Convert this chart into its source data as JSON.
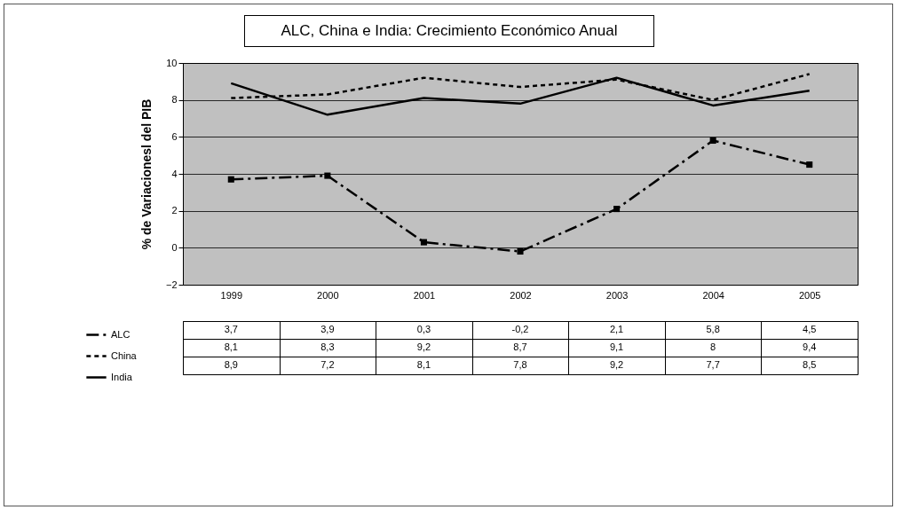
{
  "chart_data": {
    "type": "line",
    "title": "ALC, China e India: Crecimiento Económico Anual",
    "ylabel": "% de Variacionesl del PIB",
    "categories": [
      "1999",
      "2000",
      "2001",
      "2002",
      "2003",
      "2004",
      "2005"
    ],
    "series": [
      {
        "name": "ALC",
        "color": "#000000",
        "line_style": "dashed",
        "marker": "square",
        "values": [
          3.7,
          3.9,
          0.3,
          -0.2,
          2.1,
          5.8,
          4.5
        ],
        "value_labels": [
          "3,7",
          "3,9",
          "0,3",
          "-0,2",
          "2,1",
          "5,8",
          "4,5"
        ]
      },
      {
        "name": "China",
        "color": "#000000",
        "line_style": "dotted",
        "values": [
          8.1,
          8.3,
          9.2,
          8.7,
          9.1,
          8,
          9.4
        ],
        "value_labels": [
          "8,1",
          "8,3",
          "9,2",
          "8,7",
          "9,1",
          "8",
          "9,4"
        ]
      },
      {
        "name": "India",
        "color": "#000000",
        "line_style": "solid",
        "values": [
          8.9,
          7.2,
          8.1,
          7.8,
          9.2,
          7.7,
          8.5
        ],
        "value_labels": [
          "8,9",
          "7,2",
          "8,1",
          "7,8",
          "9,2",
          "7,7",
          "8,5"
        ]
      }
    ],
    "ylim": [
      -2,
      10
    ],
    "yticks": [
      -2,
      0,
      2,
      4,
      6,
      8,
      10
    ],
    "grid": "y",
    "legend": "bottom left"
  }
}
